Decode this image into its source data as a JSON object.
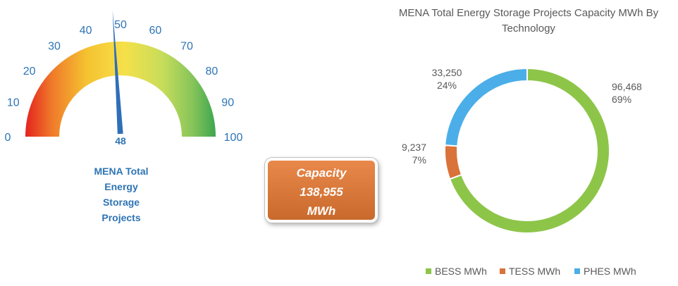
{
  "chart_data": [
    {
      "type": "gauge",
      "min": 0,
      "max": 100,
      "ticks": [
        0,
        10,
        20,
        30,
        40,
        50,
        60,
        70,
        80,
        90,
        100
      ],
      "value": 48,
      "value_label": "48",
      "caption": [
        "MENA Total",
        "Energy",
        "Storage",
        "Projects"
      ]
    },
    {
      "type": "pie",
      "donut": true,
      "title": [
        "MENA Total Energy Storage Projects Capacity MWh By",
        "Technology"
      ],
      "legend_position": "bottom",
      "series": [
        {
          "name": "BESS MWh",
          "value": 96468,
          "value_label": "96,468",
          "percent_label": "69%",
          "color": "#8DC549"
        },
        {
          "name": "TESS MWh",
          "value": 9237,
          "value_label": "9,237",
          "percent_label": "7%",
          "color": "#D9733A"
        },
        {
          "name": "PHES MWh",
          "value": 33250,
          "value_label": "33,250",
          "percent_label": "24%",
          "color": "#4BAEE8"
        }
      ]
    }
  ],
  "capacity_box": {
    "line1": "Capacity",
    "line2": "138,955",
    "line3": "MWh"
  }
}
